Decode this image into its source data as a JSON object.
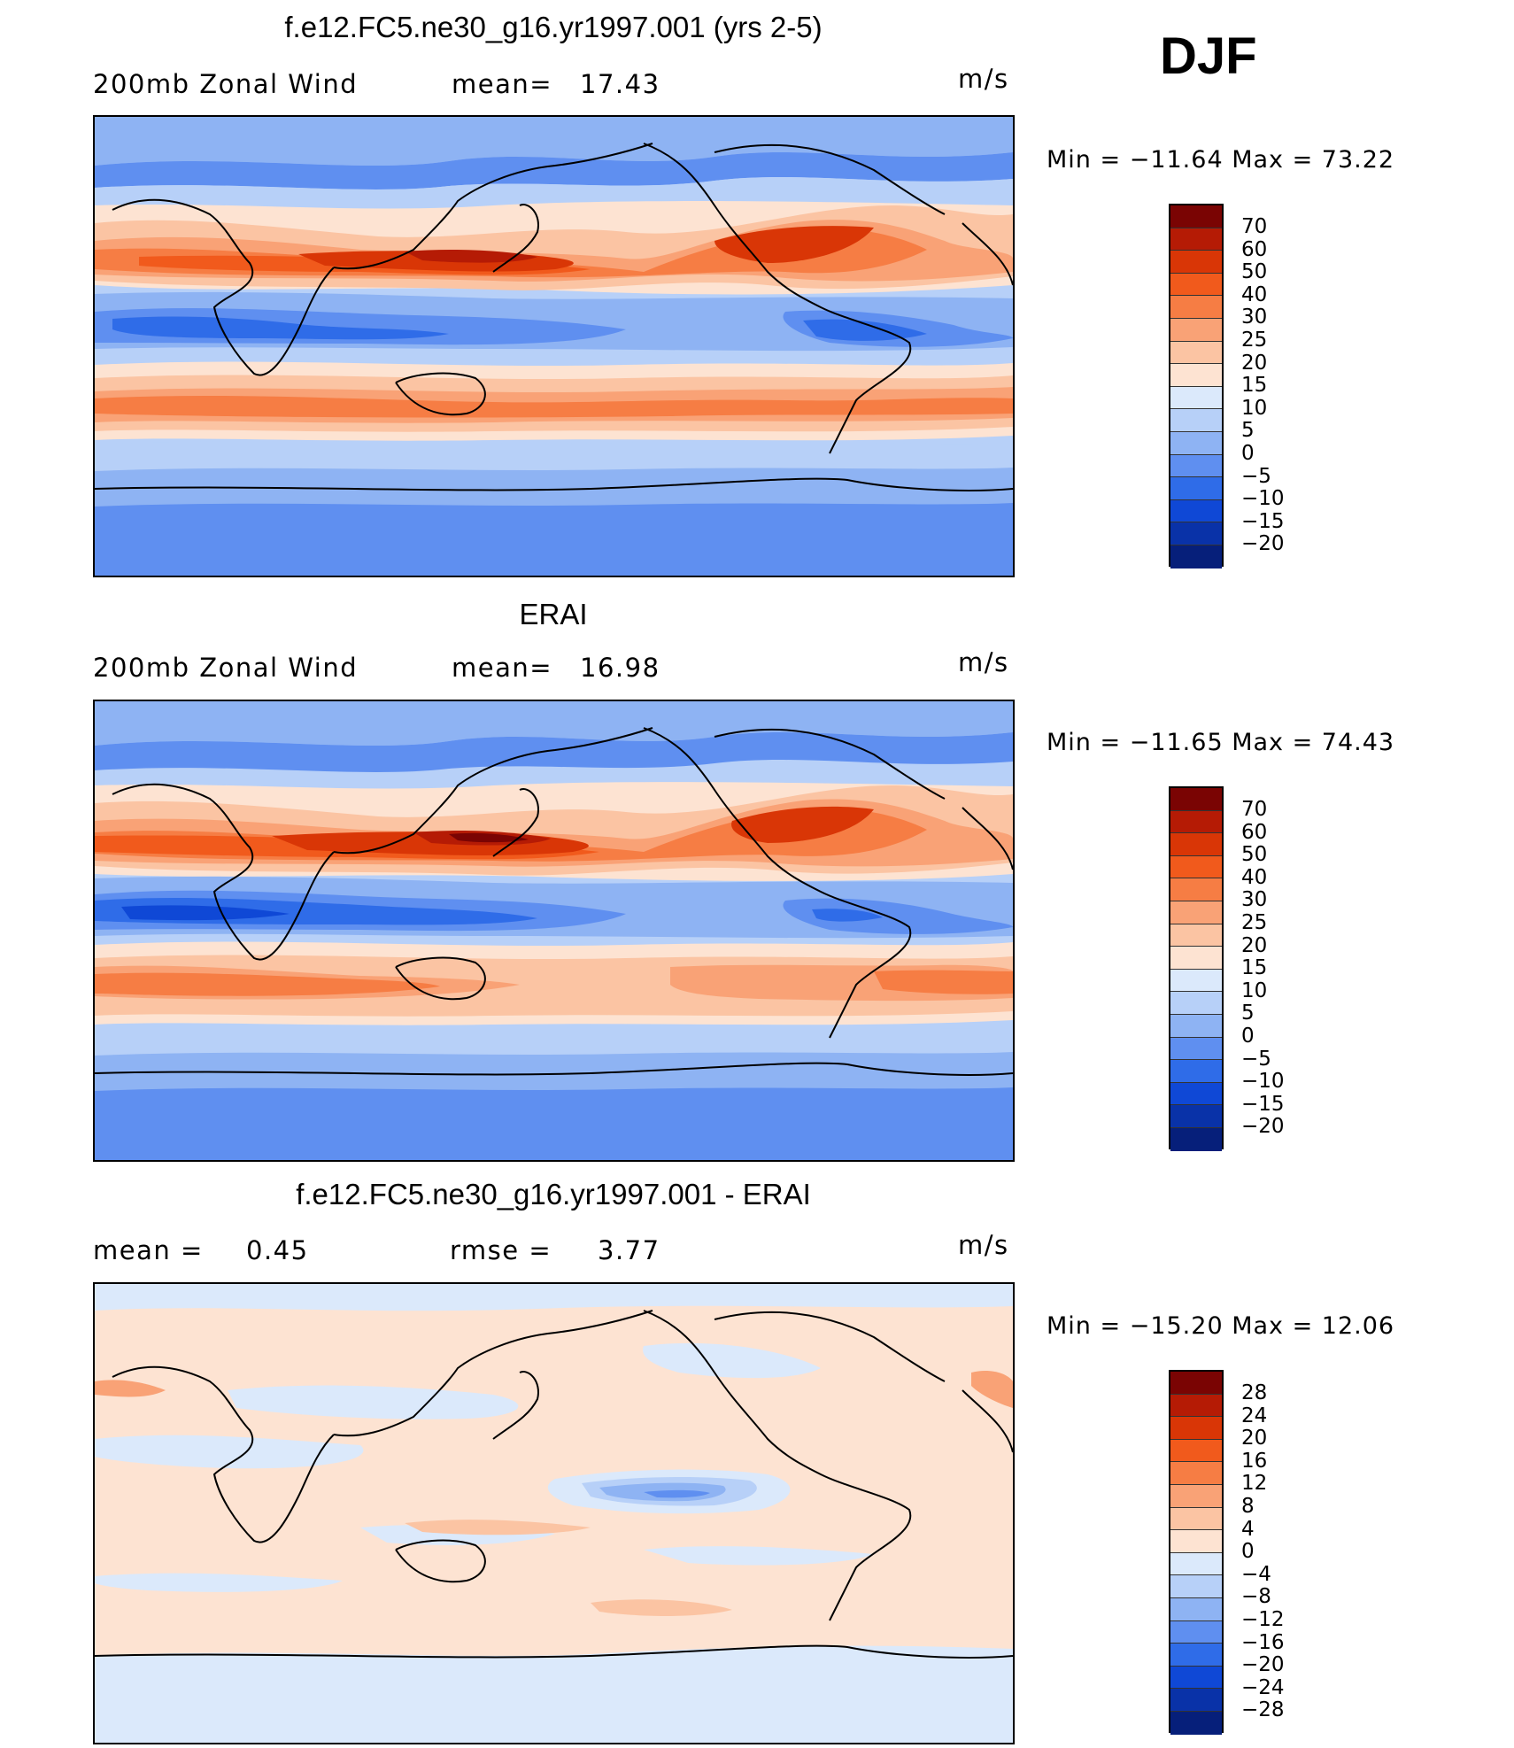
{
  "season": "DJF",
  "panels": [
    {
      "title": "f.e12.FC5.ne30_g16.yr1997.001 (yrs 2-5)",
      "left_label": "200mb Zonal Wind",
      "stat1_label": "mean=",
      "stat1_value": "17.43",
      "stat2_label": "",
      "stat2_value": "",
      "units": "m/s",
      "minmax": "Min = −11.64 Max =  73.22",
      "colorbar_ticks": [
        "70",
        "60",
        "50",
        "40",
        "30",
        "25",
        "20",
        "15",
        "10",
        "5",
        "0",
        "−5",
        "−10",
        "−15",
        "−20"
      ]
    },
    {
      "title": "ERAI",
      "left_label": "200mb Zonal Wind",
      "stat1_label": "mean=",
      "stat1_value": "16.98",
      "stat2_label": "",
      "stat2_value": "",
      "units": "m/s",
      "minmax": "Min = −11.65 Max =  74.43",
      "colorbar_ticks": [
        "70",
        "60",
        "50",
        "40",
        "30",
        "25",
        "20",
        "15",
        "10",
        "5",
        "0",
        "−5",
        "−10",
        "−15",
        "−20"
      ]
    },
    {
      "title": "f.e12.FC5.ne30_g16.yr1997.001 - ERAI",
      "left_label": "mean =",
      "stat1_label": "",
      "stat1_value": "0.45",
      "stat2_label": "rmse =",
      "stat2_value": "3.77",
      "units": "m/s",
      "minmax": "Min = −15.20 Max =  12.06",
      "colorbar_ticks": [
        "28",
        "24",
        "20",
        "16",
        "12",
        "8",
        "4",
        "0",
        "−4",
        "−8",
        "−12",
        "−16",
        "−20",
        "−24",
        "−28"
      ]
    }
  ],
  "colors": {
    "field_scale": [
      "#7a0403",
      "#b51b05",
      "#d93606",
      "#f15a1c",
      "#f67d44",
      "#f9a276",
      "#fbc4a3",
      "#fde3d2",
      "#dbe9fb",
      "#b7d0f8",
      "#8eb3f3",
      "#5f8ff0",
      "#2f6ce8",
      "#0f48d6",
      "#0932a8",
      "#061f7a"
    ],
    "diff_scale": [
      "#7a0403",
      "#b51b05",
      "#d93606",
      "#f15a1c",
      "#f67d44",
      "#f9a276",
      "#fbc4a3",
      "#fde3d2",
      "#dbe9fb",
      "#b7d0f8",
      "#8eb3f3",
      "#5f8ff0",
      "#2f6ce8",
      "#0f48d6",
      "#0932a8",
      "#061f7a"
    ]
  }
}
